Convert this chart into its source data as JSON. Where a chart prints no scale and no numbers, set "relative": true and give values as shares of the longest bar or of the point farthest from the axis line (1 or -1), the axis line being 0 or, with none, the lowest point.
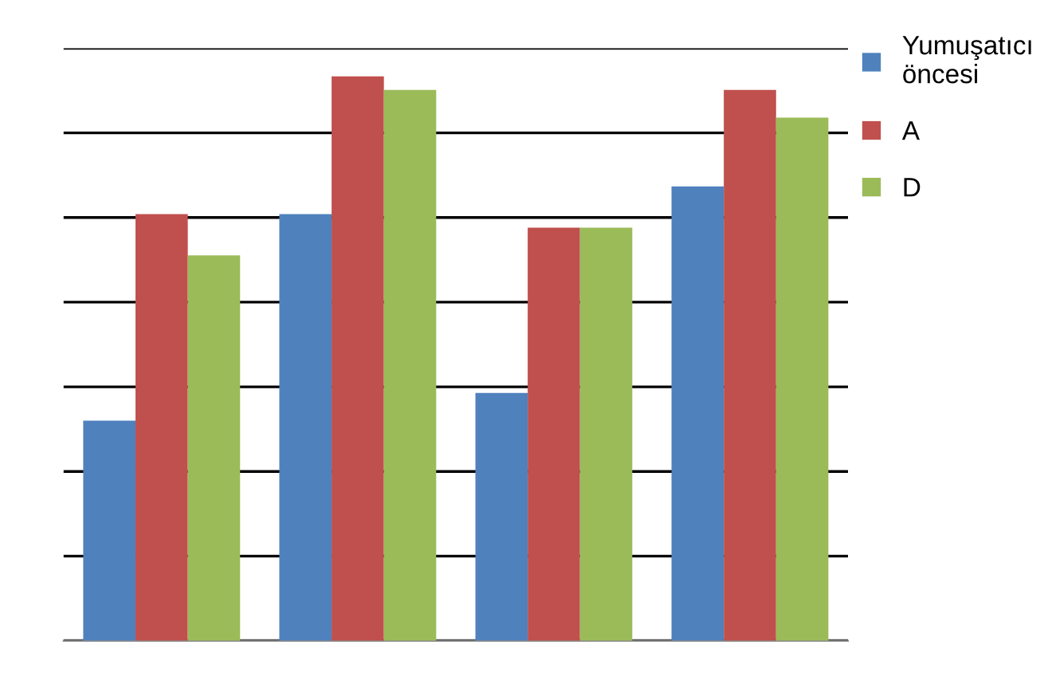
{
  "chart_data": {
    "type": "bar",
    "relative": true,
    "categories": [
      null,
      null,
      null,
      null
    ],
    "series": [
      {
        "name": "Yumuşatıcı\nöncesi",
        "color": "#4f81bd",
        "values": [
          0.39,
          0.756,
          0.439,
          0.805
        ]
      },
      {
        "name": "A",
        "color": "#c0504d",
        "values": [
          0.756,
          1,
          0.732,
          0.976
        ]
      },
      {
        "name": "D",
        "color": "#9bbb59",
        "values": [
          0.683,
          0.976,
          0.732,
          0.927
        ]
      }
    ],
    "grid": "y",
    "legend": "right"
  }
}
